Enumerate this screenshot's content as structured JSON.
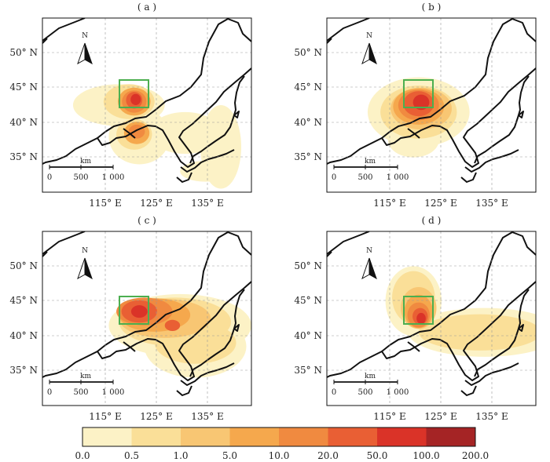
{
  "panels": [
    {
      "label": "( a )",
      "lat_ticks": [
        "50° N",
        "45° N",
        "40° N",
        "35° N"
      ],
      "lon_ticks": [
        "115° E",
        "125° E",
        "135° E"
      ],
      "north_label": "N",
      "scalebar": {
        "unit": "km",
        "ticks": [
          "0",
          "500",
          "1 000"
        ]
      },
      "source_box": "green rectangle",
      "plumes": [
        {
          "lon": 119.0,
          "lat": 43.0,
          "rx": 9.0,
          "ry": 3.0,
          "level": 0
        },
        {
          "lon": 123.0,
          "lat": 38.5,
          "rx": 6.0,
          "ry": 4.0,
          "level": 0
        },
        {
          "lon": 132.0,
          "lat": 39.0,
          "rx": 7.0,
          "ry": 3.0,
          "level": 0
        },
        {
          "lon": 139.0,
          "lat": 37.0,
          "rx": 4.0,
          "ry": 6.0,
          "level": 0
        },
        {
          "lon": 136.0,
          "lat": 33.5,
          "rx": 5.0,
          "ry": 1.5,
          "level": 0
        },
        {
          "lon": 121.0,
          "lat": 43.5,
          "rx": 5.0,
          "ry": 2.5,
          "level": 1
        },
        {
          "lon": 122.0,
          "lat": 38.8,
          "rx": 3.5,
          "ry": 2.2,
          "level": 1
        },
        {
          "lon": 122.0,
          "lat": 43.5,
          "rx": 3.2,
          "ry": 2.0,
          "level": 3
        },
        {
          "lon": 122.5,
          "lat": 39.0,
          "rx": 2.5,
          "ry": 1.6,
          "level": 3
        },
        {
          "lon": 122.0,
          "lat": 43.5,
          "rx": 2.4,
          "ry": 1.6,
          "level": 4
        },
        {
          "lon": 122.5,
          "lat": 39.2,
          "rx": 1.6,
          "ry": 1.0,
          "level": 4
        },
        {
          "lon": 122.0,
          "lat": 43.7,
          "rx": 1.6,
          "ry": 1.2,
          "level": 5
        },
        {
          "lon": 122.3,
          "lat": 43.8,
          "rx": 1.0,
          "ry": 0.8,
          "level": 6
        }
      ]
    },
    {
      "label": "( b )",
      "lat_ticks": [
        "50° N",
        "45° N",
        "40° N",
        "35° N"
      ],
      "lon_ticks": [
        "115° E",
        "125° E",
        "135° E"
      ],
      "north_label": "N",
      "scalebar": {
        "unit": "km",
        "ticks": [
          "0",
          "500",
          "1 000"
        ]
      },
      "source_box": "green rectangle",
      "plumes": [
        {
          "lon": 122.0,
          "lat": 42.0,
          "rx": 10.0,
          "ry": 5.0,
          "level": 0
        },
        {
          "lon": 121.0,
          "lat": 38.0,
          "rx": 5.0,
          "ry": 2.5,
          "level": 0
        },
        {
          "lon": 122.0,
          "lat": 42.0,
          "rx": 7.5,
          "ry": 3.8,
          "level": 1
        },
        {
          "lon": 122.5,
          "lat": 42.5,
          "rx": 6.0,
          "ry": 3.0,
          "level": 2
        },
        {
          "lon": 122.0,
          "lat": 42.8,
          "rx": 5.0,
          "ry": 2.6,
          "level": 3
        },
        {
          "lon": 122.0,
          "lat": 43.0,
          "rx": 4.0,
          "ry": 2.2,
          "level": 4
        },
        {
          "lon": 122.0,
          "lat": 43.2,
          "rx": 3.0,
          "ry": 1.8,
          "level": 5
        },
        {
          "lon": 122.5,
          "lat": 43.4,
          "rx": 1.6,
          "ry": 1.1,
          "level": 6
        }
      ]
    },
    {
      "label": "( c )",
      "lat_ticks": [
        "50° N",
        "45° N",
        "40° N",
        "35° N"
      ],
      "lon_ticks": [
        "115° E",
        "125° E",
        "135° E"
      ],
      "north_label": "N",
      "scalebar": {
        "unit": "km",
        "ticks": [
          "0",
          "500",
          "1 000"
        ]
      },
      "source_box": "green rectangle",
      "plumes": [
        {
          "lon": 131.0,
          "lat": 42.0,
          "rx": 14.0,
          "ry": 4.5,
          "level": 0
        },
        {
          "lon": 134.0,
          "lat": 39.0,
          "rx": 10.0,
          "ry": 4.5,
          "level": 0
        },
        {
          "lon": 130.0,
          "lat": 42.5,
          "rx": 11.0,
          "ry": 3.5,
          "level": 1
        },
        {
          "lon": 134.0,
          "lat": 39.5,
          "rx": 8.0,
          "ry": 3.0,
          "level": 1
        },
        {
          "lon": 128.0,
          "lat": 43.0,
          "rx": 9.0,
          "ry": 2.8,
          "level": 2
        },
        {
          "lon": 126.0,
          "lat": 43.5,
          "rx": 7.0,
          "ry": 2.4,
          "level": 3
        },
        {
          "lon": 124.0,
          "lat": 44.0,
          "rx": 5.5,
          "ry": 2.0,
          "level": 4
        },
        {
          "lon": 123.0,
          "lat": 44.0,
          "rx": 3.5,
          "ry": 1.6,
          "level": 5
        },
        {
          "lon": 129.5,
          "lat": 42.0,
          "rx": 1.5,
          "ry": 0.8,
          "level": 5
        },
        {
          "lon": 123.0,
          "lat": 44.0,
          "rx": 1.6,
          "ry": 0.9,
          "level": 6
        }
      ]
    },
    {
      "label": "( d )",
      "lat_ticks": [
        "50° N",
        "45° N",
        "40° N",
        "35° N"
      ],
      "lon_ticks": [
        "115° E",
        "125° E",
        "135° E"
      ],
      "north_label": "N",
      "scalebar": {
        "unit": "km",
        "ticks": [
          "0",
          "500",
          "1 000"
        ]
      },
      "source_box": "green rectangle",
      "plumes": [
        {
          "lon": 135.0,
          "lat": 41.0,
          "rx": 15.0,
          "ry": 3.5,
          "level": 0
        },
        {
          "lon": 121.0,
          "lat": 45.5,
          "rx": 5.5,
          "ry": 5.0,
          "level": 0
        },
        {
          "lon": 134.0,
          "lat": 41.0,
          "rx": 12.0,
          "ry": 2.6,
          "level": 1
        },
        {
          "lon": 121.0,
          "lat": 46.0,
          "rx": 4.2,
          "ry": 3.8,
          "level": 1
        },
        {
          "lon": 122.0,
          "lat": 44.5,
          "rx": 3.5,
          "ry": 3.0,
          "level": 2
        },
        {
          "lon": 122.0,
          "lat": 44.0,
          "rx": 2.8,
          "ry": 2.4,
          "level": 3
        },
        {
          "lon": 122.0,
          "lat": 43.5,
          "rx": 2.2,
          "ry": 1.8,
          "level": 4
        },
        {
          "lon": 122.3,
          "lat": 43.3,
          "rx": 1.5,
          "ry": 1.2,
          "level": 5
        },
        {
          "lon": 122.5,
          "lat": 43.0,
          "rx": 0.9,
          "ry": 0.8,
          "level": 6
        }
      ]
    }
  ],
  "colorbar": {
    "labels": [
      "0.0",
      "0.5",
      "1.0",
      "5.0",
      "10.0",
      "20.0",
      "50.0",
      "100.0",
      "200.0"
    ],
    "colors": [
      "#fcf2c6",
      "#fadf98",
      "#f8c673",
      "#f5a84d",
      "#f08a40",
      "#e95f34",
      "#da3328",
      "#a52425"
    ]
  },
  "chart_data": {
    "type": "heatmap",
    "panels": [
      "( a )",
      "( b )",
      "( c )",
      "( d )"
    ],
    "x_axis": {
      "ticks": [
        "115° E",
        "125° E",
        "135° E"
      ],
      "range": [
        104,
        145
      ]
    },
    "y_axis": {
      "ticks": [
        "50° N",
        "45° N",
        "40° N",
        "35° N"
      ],
      "range": [
        30.5,
        55.5
      ]
    },
    "source_region": {
      "lon": [
        119,
        124
      ],
      "lat": [
        42,
        46
      ]
    },
    "levels": [
      0.0,
      0.5,
      1.0,
      5.0,
      10.0,
      20.0,
      50.0,
      100.0,
      200.0
    ],
    "grid": "dashed gray",
    "legend": "horizontal colorbar, bottom"
  }
}
